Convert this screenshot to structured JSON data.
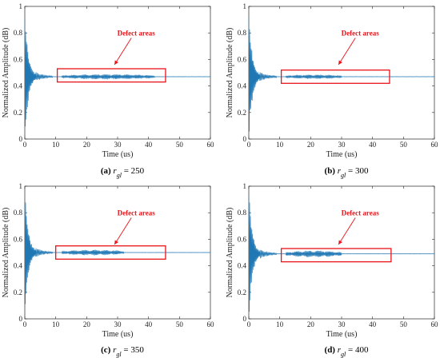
{
  "chart_data": [
    {
      "type": "line",
      "panel": "a",
      "caption": {
        "letter": "(a)",
        "var": "r",
        "sub": "gl",
        "rest": " = 250"
      },
      "xlabel": "Time (us)",
      "ylabel": "Normalized Amplitude (dB)",
      "xlim": [
        0,
        60
      ],
      "ylim": [
        0,
        1
      ],
      "xticks": [
        0,
        10,
        20,
        30,
        40,
        50,
        60
      ],
      "yticks": [
        0,
        0.2,
        0.4,
        0.6,
        0.8,
        1
      ],
      "baseline": 0.47,
      "defect_region": {
        "x": [
          10.5,
          45.5
        ],
        "y": [
          0.43,
          0.53
        ]
      },
      "defect_burst": {
        "x": [
          12,
          42
        ],
        "amp": 0.018
      },
      "annotation": "Defect areas",
      "line_color": "#1f77b4"
    },
    {
      "type": "line",
      "panel": "b",
      "caption": {
        "letter": "(b)",
        "var": "r",
        "sub": "gl",
        "rest": " = 300"
      },
      "xlabel": "Time (us)",
      "ylabel": "Normalized Amplitude (dB)",
      "xlim": [
        0,
        60
      ],
      "ylim": [
        0,
        1
      ],
      "xticks": [
        0,
        10,
        20,
        30,
        40,
        50,
        60
      ],
      "yticks": [
        0,
        0.2,
        0.4,
        0.6,
        0.8,
        1
      ],
      "baseline": 0.47,
      "defect_region": {
        "x": [
          10.5,
          45.5
        ],
        "y": [
          0.42,
          0.52
        ]
      },
      "defect_burst": {
        "x": [
          12,
          30
        ],
        "amp": 0.014
      },
      "annotation": "Defect areas",
      "line_color": "#1f77b4"
    },
    {
      "type": "line",
      "panel": "c",
      "caption": {
        "letter": "(c)",
        "var": "r",
        "sub": "gl",
        "rest": " = 350"
      },
      "xlabel": "Time (us)",
      "ylabel": "Normalized Amplitude (dB)",
      "xlim": [
        0,
        60
      ],
      "ylim": [
        0,
        1
      ],
      "xticks": [
        0,
        10,
        20,
        30,
        40,
        50,
        60
      ],
      "yticks": [
        0,
        0.2,
        0.4,
        0.6,
        0.8,
        1
      ],
      "baseline": 0.5,
      "defect_region": {
        "x": [
          10,
          45.5
        ],
        "y": [
          0.45,
          0.55
        ]
      },
      "defect_burst": {
        "x": [
          12,
          32
        ],
        "amp": 0.02
      },
      "annotation": "Defect areas",
      "line_color": "#1f77b4"
    },
    {
      "type": "line",
      "panel": "d",
      "caption": {
        "letter": "(d)",
        "var": "r",
        "sub": "gl",
        "rest": " = 400"
      },
      "xlabel": "Time (us)",
      "ylabel": "Normalized Amplitude (dB)",
      "xlim": [
        0,
        60
      ],
      "ylim": [
        0,
        1
      ],
      "xticks": [
        0,
        10,
        20,
        30,
        40,
        50,
        60
      ],
      "yticks": [
        0,
        0.2,
        0.4,
        0.6,
        0.8,
        1
      ],
      "baseline": 0.49,
      "defect_region": {
        "x": [
          10.5,
          46
        ],
        "y": [
          0.43,
          0.53
        ]
      },
      "defect_burst": {
        "x": [
          12,
          30
        ],
        "amp": 0.025
      },
      "annotation": "Defect areas",
      "line_color": "#1f77b4"
    }
  ]
}
